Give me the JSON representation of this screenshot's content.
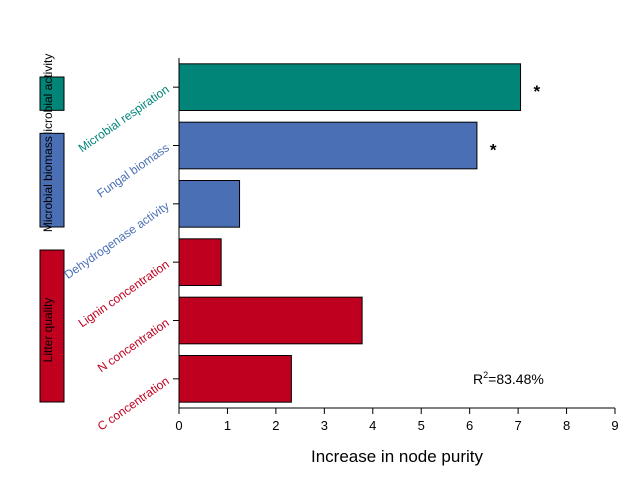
{
  "chart_data": {
    "type": "bar",
    "orientation": "horizontal",
    "categories": [
      "Microbial respiration",
      "Fungal biomass",
      "Dehydrogenase activity",
      "Lignin concentration",
      "N concentration",
      "C concentration"
    ],
    "values": [
      7.05,
      6.15,
      1.25,
      0.87,
      3.78,
      2.32
    ],
    "bar_colors": [
      "#008578",
      "#4a6fb5",
      "#4a6fb5",
      "#c0001f",
      "#c0001f",
      "#c0001f"
    ],
    "label_colors": [
      "#008578",
      "#4a6fb5",
      "#4a6fb5",
      "#c0001f",
      "#c0001f",
      "#c0001f"
    ],
    "significance": [
      "*",
      "*",
      "",
      "",
      "",
      ""
    ],
    "xlabel": "Increase in node purity",
    "xlim": [
      0,
      9
    ],
    "xticks": [
      "0",
      "1",
      "2",
      "3",
      "4",
      "5",
      "6",
      "7",
      "8",
      "9"
    ],
    "grid": false,
    "annotation": {
      "r_prefix": "R",
      "r_exponent": "2",
      "r_value": "=83.48%"
    },
    "groups": [
      {
        "label": "Microbial activity",
        "color": "#008578",
        "categories": [
          "Microbial respiration"
        ]
      },
      {
        "label": "Microbial biomass",
        "color": "#4a6fb5",
        "categories": [
          "Fungal biomass",
          "Dehydrogenase activity"
        ]
      },
      {
        "label": "Litter quality",
        "color": "#c0001f",
        "categories": [
          "Lignin concentration",
          "N concentration",
          "C concentration"
        ]
      }
    ]
  }
}
